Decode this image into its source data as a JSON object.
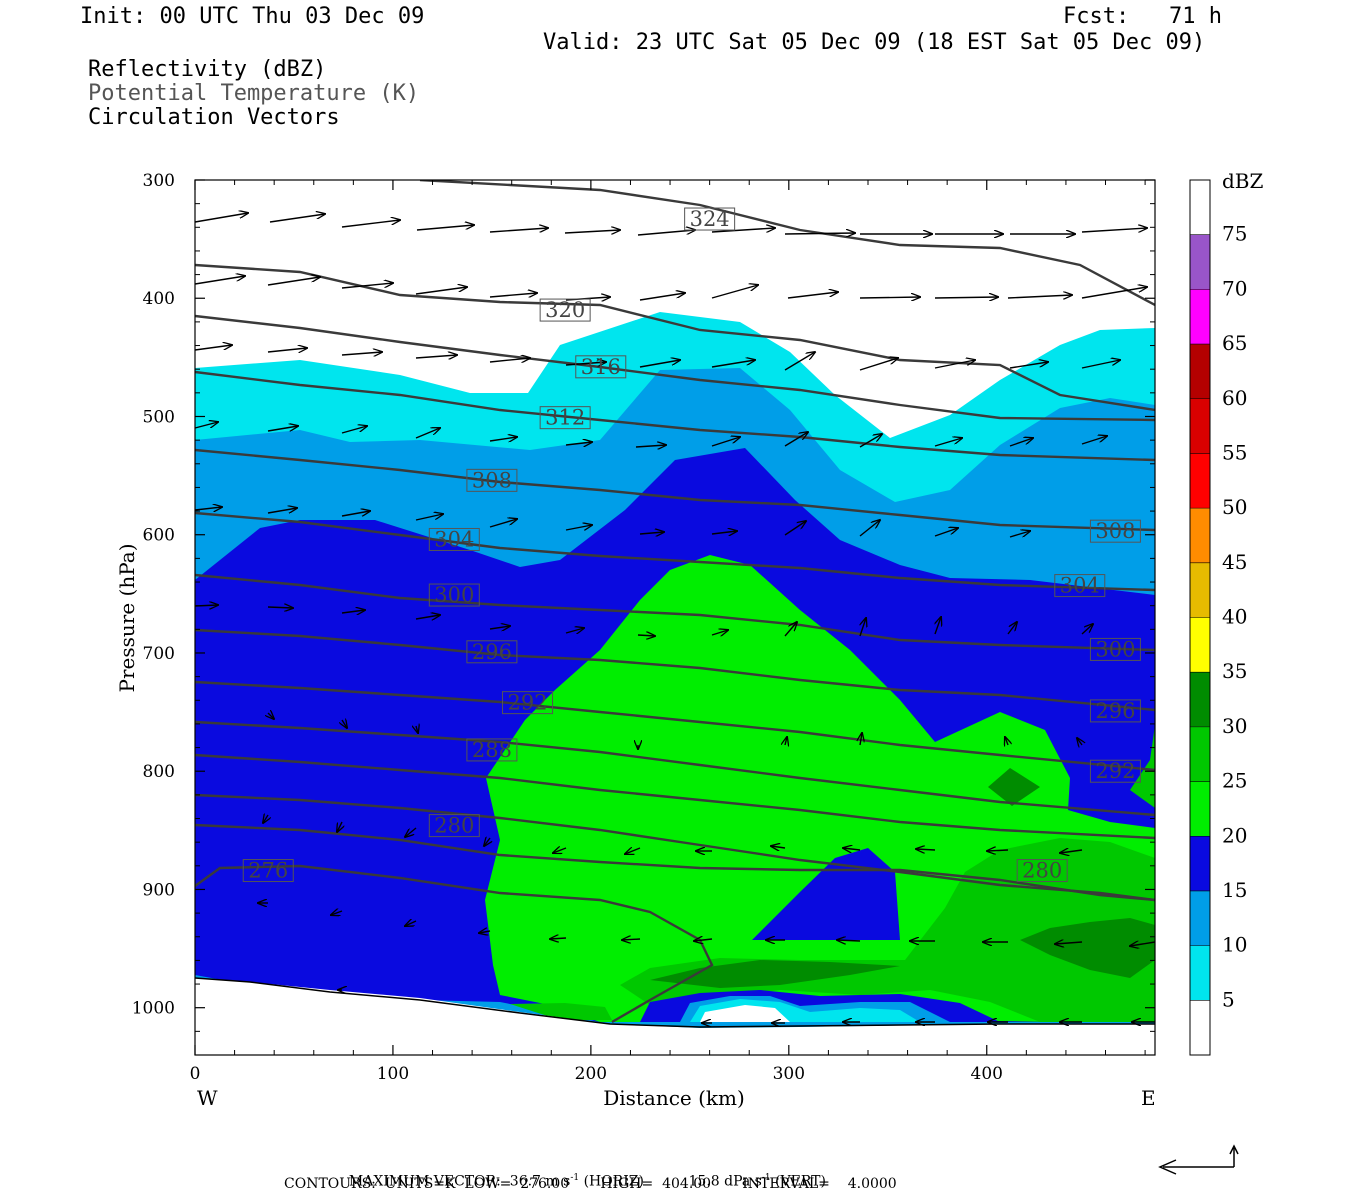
{
  "header": {
    "init": "Init: 00 UTC Thu 03 Dec 09",
    "fcst": "Fcst:   71 h",
    "valid": "Valid: 23 UTC Sat 05 Dec 09 (18 EST Sat 05 Dec 09)",
    "field1": "Reflectivity (dBZ)",
    "field2": "Potential Temperature (K)",
    "field3": "Circulation Vectors"
  },
  "footer": {
    "max_vector_label": "MAXIMUM VECTOR:",
    "horiz_value": "36.7 m s",
    "horiz_tail": " (HORIZ)",
    "vert_value": "15.8 dPa s",
    "vert_tail": " (VERT)",
    "exp": "-1",
    "contours": "CONTOURS:  UNITS=K  LOW=  276.00       HIGH=  404.00       INTERVAL=    4.0000"
  },
  "chart_data": {
    "type": "contour",
    "xlabel": "Distance (km)",
    "ylabel": "Pressure (hPa)",
    "xlim": [
      0,
      485
    ],
    "ylim": [
      1040,
      300
    ],
    "x_ticks": [
      0,
      100,
      200,
      300,
      400
    ],
    "y_ticks": [
      300,
      400,
      500,
      600,
      700,
      800,
      900,
      1000
    ],
    "x_end_labels": {
      "left": "W",
      "right": "E"
    },
    "colorbar": {
      "title": "dBZ",
      "levels": [
        5,
        10,
        15,
        20,
        25,
        30,
        35,
        40,
        45,
        50,
        55,
        60,
        65,
        70,
        75
      ],
      "colors": [
        "#ffffff",
        "#00e5ee",
        "#009ee8",
        "#0a0adf",
        "#00ee00",
        "#00c800",
        "#008c00",
        "#ffff00",
        "#e6bb00",
        "#ff8c00",
        "#ff0000",
        "#d90000",
        "#b40000",
        "#ff00ff",
        "#9955c9",
        "#ffffff"
      ]
    },
    "theta_contour_labels": [
      {
        "value": "324",
        "x": 260,
        "p": 333
      },
      {
        "value": "320",
        "x": 187,
        "p": 410
      },
      {
        "value": "316",
        "x": 205,
        "p": 458
      },
      {
        "value": "312",
        "x": 187,
        "p": 501
      },
      {
        "value": "308",
        "x": 150,
        "p": 554
      },
      {
        "value": "304",
        "x": 131,
        "p": 604
      },
      {
        "value": "300",
        "x": 131,
        "p": 651
      },
      {
        "value": "296",
        "x": 150,
        "p": 699
      },
      {
        "value": "292",
        "x": 168,
        "p": 742
      },
      {
        "value": "288",
        "x": 150,
        "p": 782
      },
      {
        "value": "280",
        "x": 131,
        "p": 846
      },
      {
        "value": "276",
        "x": 37,
        "p": 884
      },
      {
        "value": "308",
        "x": 465,
        "p": 597
      },
      {
        "value": "304",
        "x": 447,
        "p": 643
      },
      {
        "value": "300",
        "x": 465,
        "p": 697
      },
      {
        "value": "296",
        "x": 465,
        "p": 749
      },
      {
        "value": "292",
        "x": 465,
        "p": 800
      },
      {
        "value": "280",
        "x": 428,
        "p": 884
      }
    ]
  }
}
